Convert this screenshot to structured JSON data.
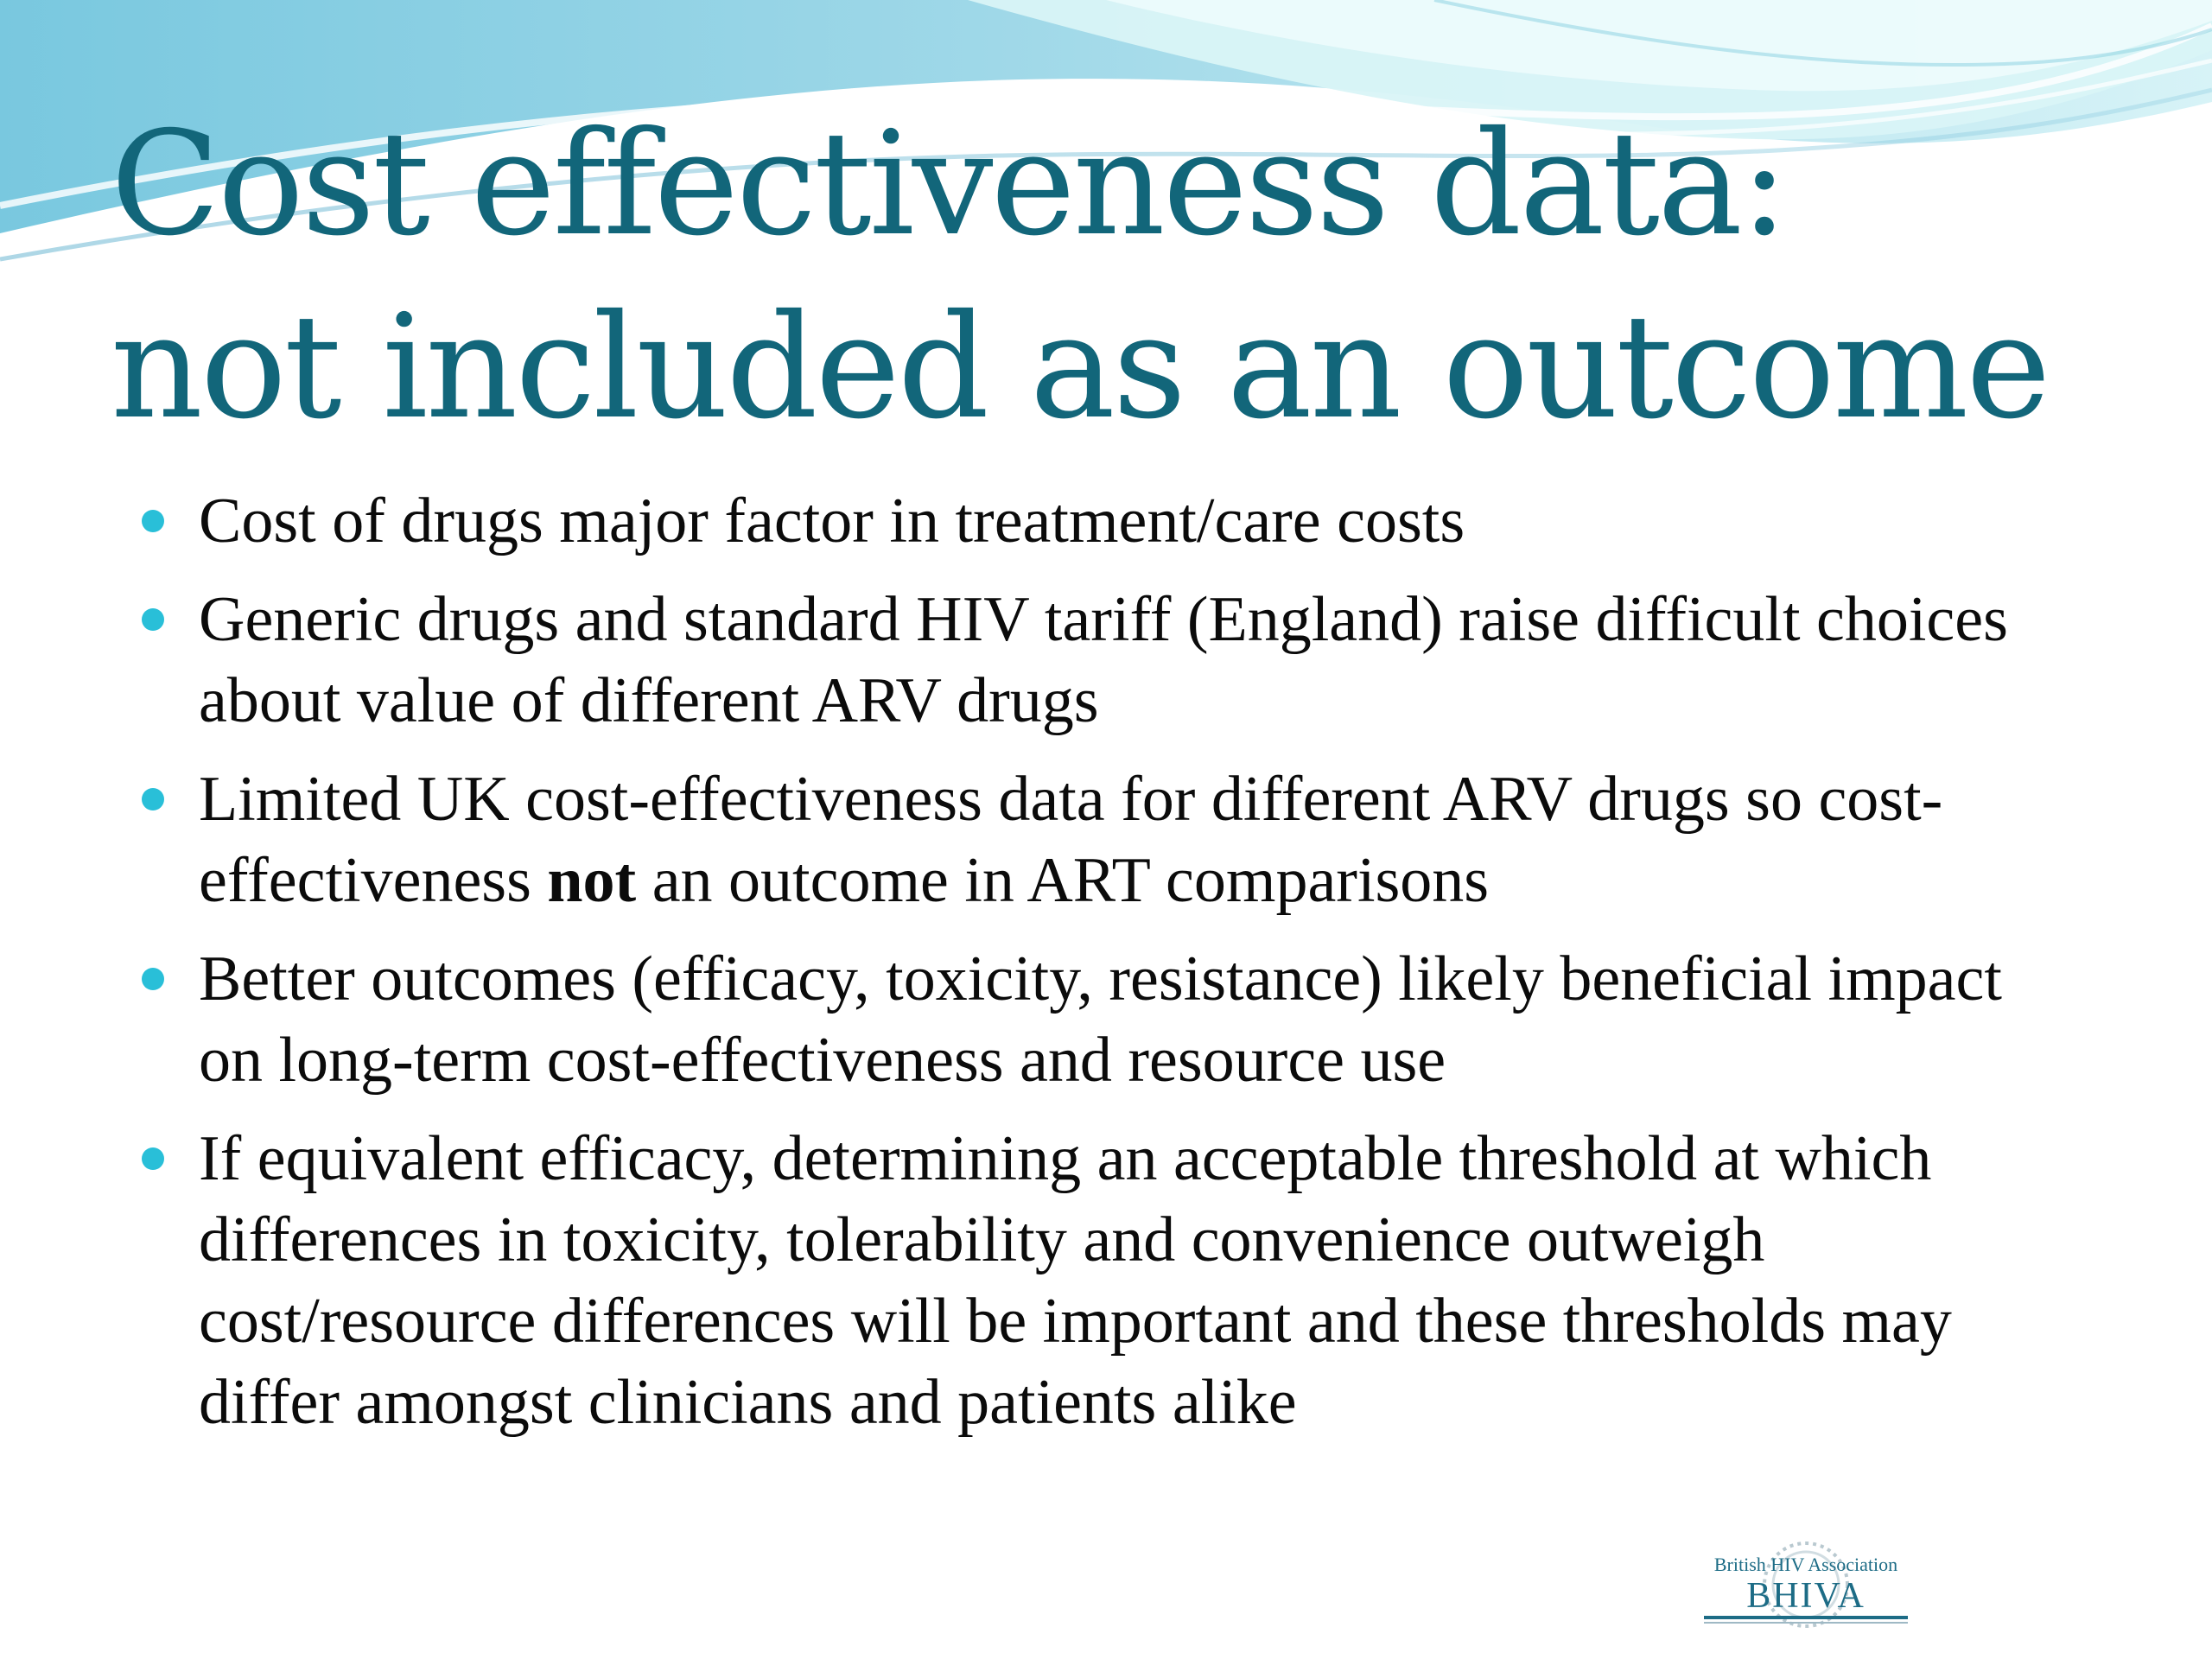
{
  "slide": {
    "title": {
      "line1": "Cost effectiveness data:",
      "line2": "not included as an outcome"
    },
    "bullets": [
      {
        "text": "Cost of drugs major factor in treatment/care costs"
      },
      {
        "text": "Generic drugs and standard HIV tariff (England) raise difficult choices about value of different ARV drugs"
      },
      {
        "before": "Limited UK cost-effectiveness data for different ARV drugs so cost-effectiveness ",
        "bold": "not",
        "after": " an outcome in ART comparisons"
      },
      {
        "text": "Better outcomes (efficacy, toxicity, resistance) likely beneficial impact on long-term cost-effectiveness and resource use"
      },
      {
        "text": "If equivalent efficacy, determining an acceptable threshold at which differences in toxicity, tolerability and convenience outweigh cost/resource differences will be important and these thresholds may differ amongst clinicians and patients alike"
      }
    ],
    "logo": {
      "top": "British HIV Association",
      "main": "BHIVA"
    }
  },
  "colors": {
    "title": "#12667a",
    "bullet": "#29bfd8",
    "text": "#0b0b0b",
    "wave_light": "#c7eef3",
    "wave_mid": "#78c9db",
    "wave_dark": "#5faec8"
  }
}
